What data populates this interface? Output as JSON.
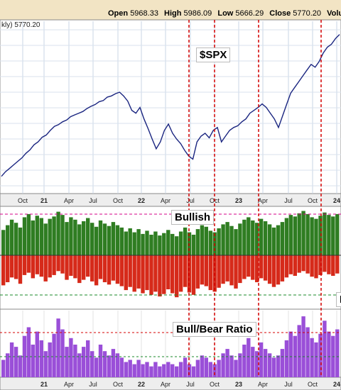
{
  "header": {
    "open_label": "Open",
    "open": "5968.33",
    "high_label": "High",
    "high": "5986.09",
    "low_label": "Low",
    "low": "5666.29",
    "close_label": "Close",
    "close": "5770.20",
    "cut_label": "Volu"
  },
  "price_panel": {
    "series_label": "kly) 5770.20"
  },
  "callouts": {
    "spx": "$SPX",
    "bullish": "Bullish",
    "bearish_cut": "B",
    "ratio": "Bull/Bear Ratio"
  },
  "colors": {
    "price_line": "#1a2580",
    "bullish": "#2f7d22",
    "bearish": "#d62a1a",
    "ratio": "#9a4fd8",
    "markers": "#d40000",
    "header_bg": "#f2e4c4"
  },
  "chart_data": [
    {
      "type": "line",
      "series": [
        {
          "name": "$SPX",
          "values": [
            3300,
            3380,
            3440,
            3500,
            3560,
            3620,
            3700,
            3760,
            3850,
            3900,
            3980,
            4020,
            4100,
            4170,
            4200,
            4250,
            4280,
            4340,
            4370,
            4400,
            4430,
            4480,
            4520,
            4550,
            4600,
            4620,
            4680,
            4700,
            4740,
            4766,
            4700,
            4610,
            4450,
            4400,
            4500,
            4300,
            4130,
            3950,
            3780,
            3900,
            4100,
            4210,
            4050,
            3950,
            3870,
            3750,
            3650,
            3600,
            3900,
            4000,
            4050,
            3970,
            4100,
            4150,
            3900,
            4000,
            4100,
            4150,
            4180,
            4250,
            4300,
            4400,
            4450,
            4500,
            4560,
            4500,
            4400,
            4300,
            4150,
            4350,
            4550,
            4750,
            4850,
            4950,
            5050,
            5150,
            5250,
            5200,
            5300,
            5450,
            5550,
            5600,
            5700,
            5770
          ]
        }
      ],
      "x_tick_labels": [
        "Oct",
        "21",
        "Apr",
        "Jul",
        "Oct",
        "22",
        "Apr",
        "Jul",
        "Oct",
        "23",
        "Apr",
        "Jul",
        "Oct",
        "24"
      ],
      "markers": [
        "Jul",
        "Oct",
        "Apr",
        "Oct"
      ]
    },
    {
      "type": "bar",
      "series": [
        {
          "name": "Bullish",
          "values": [
            32,
            38,
            45,
            41,
            35,
            48,
            52,
            44,
            50,
            47,
            40,
            46,
            49,
            55,
            51,
            42,
            48,
            45,
            39,
            43,
            47,
            41,
            36,
            44,
            40,
            37,
            42,
            38,
            35,
            30,
            34,
            29,
            33,
            27,
            31,
            26,
            30,
            25,
            28,
            32,
            27,
            24,
            30,
            35,
            29,
            26,
            33,
            38,
            36,
            31,
            29,
            34,
            39,
            42,
            37,
            33,
            40,
            45,
            48,
            44,
            41,
            46,
            43,
            39,
            35,
            38,
            42,
            47,
            51,
            49,
            53,
            56,
            52,
            48,
            46,
            50,
            54,
            51,
            49,
            52
          ]
        },
        {
          "name": "Bearish",
          "values": [
            -38,
            -34,
            -28,
            -30,
            -36,
            -25,
            -22,
            -29,
            -24,
            -27,
            -33,
            -28,
            -25,
            -20,
            -23,
            -31,
            -26,
            -29,
            -35,
            -31,
            -27,
            -33,
            -38,
            -30,
            -34,
            -37,
            -32,
            -36,
            -39,
            -44,
            -40,
            -46,
            -42,
            -48,
            -44,
            -50,
            -46,
            -52,
            -49,
            -43,
            -48,
            -53,
            -46,
            -40,
            -47,
            -50,
            -42,
            -37,
            -39,
            -44,
            -46,
            -41,
            -36,
            -33,
            -38,
            -42,
            -35,
            -30,
            -27,
            -31,
            -34,
            -29,
            -32,
            -36,
            -40,
            -37,
            -33,
            -28,
            -24,
            -26,
            -22,
            -20,
            -23,
            -27,
            -29,
            -25,
            -21,
            -24,
            -26,
            -23
          ]
        }
      ]
    },
    {
      "type": "bar",
      "series": [
        {
          "name": "Bull/Bear Ratio",
          "values": [
            0.8,
            1.1,
            1.6,
            1.4,
            1.0,
            1.9,
            2.3,
            1.5,
            2.1,
            1.7,
            1.2,
            1.6,
            2.0,
            2.7,
            2.2,
            1.4,
            1.8,
            1.5,
            1.1,
            1.4,
            1.7,
            1.2,
            0.9,
            1.5,
            1.2,
            1.0,
            1.3,
            1.1,
            0.9,
            0.7,
            0.8,
            0.6,
            0.8,
            0.6,
            0.7,
            0.5,
            0.7,
            0.5,
            0.6,
            0.7,
            0.6,
            0.5,
            0.7,
            0.9,
            0.6,
            0.5,
            0.8,
            1.0,
            0.9,
            0.7,
            0.6,
            0.8,
            1.1,
            1.3,
            1.0,
            0.8,
            1.1,
            1.5,
            1.8,
            1.4,
            1.2,
            1.6,
            1.3,
            1.1,
            0.9,
            1.0,
            1.3,
            1.7,
            2.1,
            1.9,
            2.4,
            2.8,
            2.3,
            1.8,
            1.6,
            2.0,
            2.6,
            2.1,
            1.9,
            2.2
          ]
        }
      ],
      "x_tick_labels": [
        "21",
        "Apr",
        "Jul",
        "Oct",
        "22",
        "Apr",
        "Jul",
        "Oct",
        "23",
        "Apr",
        "Jul",
        "Oct",
        "24"
      ]
    }
  ]
}
